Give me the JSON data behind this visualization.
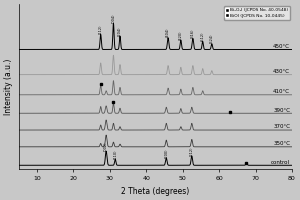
{
  "xlabel": "2 Theta (degrees)",
  "ylabel": "Intensity (a.u.)",
  "xlim": [
    5,
    80
  ],
  "x_ticks": [
    10,
    20,
    30,
    40,
    50,
    60,
    70,
    80
  ],
  "labels": [
    "control",
    "350°C",
    "370°C",
    "390°C",
    "410°C",
    "430°C",
    "450°C"
  ],
  "offsets": [
    0.0,
    0.55,
    1.05,
    1.55,
    2.1,
    2.7,
    3.45
  ],
  "background_color": "#c8c8c8",
  "legend_marker1": "Bi₂O₃I (JCPDS No. 40-0548)",
  "legend_marker2": "BiOI (JCPDS No. 10-0445)",
  "peak_annotations_top": [
    "(112)",
    "(004)",
    "(204)",
    "(404)",
    "(420)",
    "(316)",
    "(512)",
    "(624)"
  ],
  "peak_xpos_top": [
    27.5,
    31.0,
    32.8,
    46.0,
    49.5,
    52.8,
    55.5,
    58.0
  ],
  "peak_annotations_control": [
    "(002)",
    "(110)",
    "(200)",
    "(212)"
  ],
  "peak_xpos_control": [
    29.0,
    31.5,
    45.5,
    52.5
  ]
}
